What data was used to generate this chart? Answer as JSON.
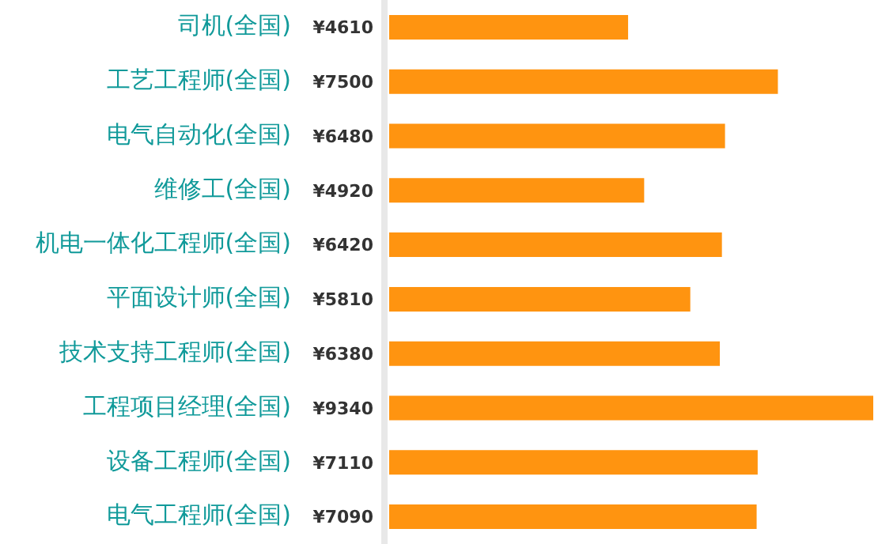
{
  "chart_data": {
    "type": "bar",
    "orientation": "horizontal",
    "categories": [
      "司机(全国)",
      "工艺工程师(全国)",
      "电气自动化(全国)",
      "维修工(全国)",
      "机电一体化工程师(全国)",
      "平面设计师(全国)",
      "技术支持工程师(全国)",
      "工程项目经理(全国)",
      "设备工程师(全国)",
      "电气工程师(全国)"
    ],
    "values": [
      4610,
      7500,
      6480,
      4920,
      6420,
      5810,
      6380,
      9340,
      7110,
      7090
    ],
    "value_labels": [
      "¥4610",
      "¥7500",
      "¥6480",
      "¥4920",
      "¥6420",
      "¥5810",
      "¥6380",
      "¥9340",
      "¥7110",
      "¥7090"
    ],
    "color": "#ff9410",
    "legend": false
  }
}
